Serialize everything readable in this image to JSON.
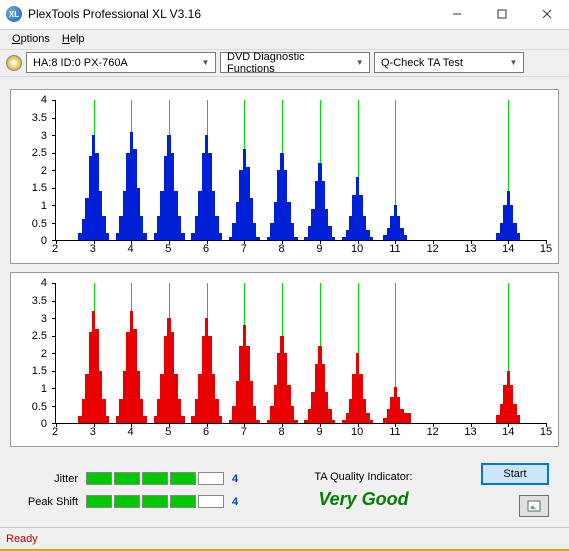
{
  "window": {
    "title": "PlexTools Professional XL V3.16",
    "icon_label": "XL"
  },
  "menu": {
    "options": "Options",
    "help": "Help"
  },
  "toolbar": {
    "drive": "HA:8 ID:0   PX-760A",
    "category": "DVD Diagnostic Functions",
    "test": "Q-Check TA Test"
  },
  "chart_common": {
    "x_min": 2,
    "x_max": 15,
    "x_step": 1,
    "y_min": 0,
    "y_max": 4,
    "y_step": 0.5,
    "grid_positions": [
      3,
      4,
      5,
      6,
      7,
      8,
      9,
      10,
      11,
      14
    ],
    "grid_color": "#00dd00",
    "plot_bg": "#ffffff",
    "border_color": "#999999",
    "bars_per_cluster": 9,
    "cluster_half_width": 0.41
  },
  "chart1": {
    "color": "#0020d8",
    "clusters": [
      {
        "c": 3,
        "h": [
          0.2,
          0.6,
          1.2,
          2.4,
          3.0,
          2.5,
          1.4,
          0.7,
          0.2
        ]
      },
      {
        "c": 4,
        "h": [
          0.2,
          0.7,
          1.4,
          2.5,
          3.1,
          2.6,
          1.5,
          0.7,
          0.2
        ]
      },
      {
        "c": 5,
        "h": [
          0.2,
          0.7,
          1.4,
          2.4,
          3.0,
          2.5,
          1.4,
          0.7,
          0.2
        ]
      },
      {
        "c": 6,
        "h": [
          0.2,
          0.7,
          1.4,
          2.5,
          3.0,
          2.5,
          1.4,
          0.7,
          0.2
        ]
      },
      {
        "c": 7,
        "h": [
          0.1,
          0.5,
          1.1,
          2.0,
          2.6,
          2.1,
          1.2,
          0.5,
          0.1
        ]
      },
      {
        "c": 8,
        "h": [
          0.1,
          0.5,
          1.1,
          2.0,
          2.5,
          2.0,
          1.1,
          0.5,
          0.1
        ]
      },
      {
        "c": 9,
        "h": [
          0.1,
          0.4,
          0.9,
          1.7,
          2.2,
          1.7,
          0.9,
          0.4,
          0.1
        ]
      },
      {
        "c": 10,
        "h": [
          0.1,
          0.3,
          0.7,
          1.3,
          1.8,
          1.3,
          0.7,
          0.3,
          0.1
        ]
      },
      {
        "c": 11,
        "h": [
          0.0,
          0.15,
          0.35,
          0.7,
          1.0,
          0.7,
          0.35,
          0.15,
          0.0
        ]
      },
      {
        "c": 14,
        "h": [
          0.0,
          0.2,
          0.5,
          1.0,
          1.4,
          1.0,
          0.5,
          0.2,
          0.0
        ]
      }
    ]
  },
  "chart2": {
    "color": "#e80000",
    "clusters": [
      {
        "c": 3,
        "h": [
          0.2,
          0.7,
          1.4,
          2.6,
          3.2,
          2.7,
          1.5,
          0.7,
          0.2
        ]
      },
      {
        "c": 4,
        "h": [
          0.2,
          0.7,
          1.5,
          2.6,
          3.2,
          2.7,
          1.5,
          0.7,
          0.2
        ]
      },
      {
        "c": 5,
        "h": [
          0.2,
          0.7,
          1.4,
          2.5,
          3.0,
          2.6,
          1.4,
          0.7,
          0.2
        ]
      },
      {
        "c": 6,
        "h": [
          0.2,
          0.7,
          1.4,
          2.5,
          3.0,
          2.5,
          1.4,
          0.7,
          0.2
        ]
      },
      {
        "c": 7,
        "h": [
          0.1,
          0.5,
          1.2,
          2.2,
          2.8,
          2.2,
          1.2,
          0.5,
          0.1
        ]
      },
      {
        "c": 8,
        "h": [
          0.1,
          0.5,
          1.1,
          2.0,
          2.5,
          2.0,
          1.1,
          0.5,
          0.1
        ]
      },
      {
        "c": 9,
        "h": [
          0.1,
          0.4,
          0.9,
          1.7,
          2.2,
          1.7,
          0.9,
          0.4,
          0.1
        ]
      },
      {
        "c": 10,
        "h": [
          0.1,
          0.3,
          0.7,
          1.4,
          2.0,
          1.4,
          0.7,
          0.3,
          0.1
        ]
      },
      {
        "c": 11,
        "h": [
          0.0,
          0.15,
          0.4,
          0.75,
          1.05,
          0.75,
          0.4,
          0.3,
          0.3
        ]
      },
      {
        "c": 14,
        "h": [
          0.0,
          0.25,
          0.55,
          1.1,
          1.5,
          1.1,
          0.55,
          0.25,
          0.0
        ]
      }
    ]
  },
  "results": {
    "jitter": {
      "label": "Jitter",
      "segments": [
        true,
        true,
        true,
        true,
        false
      ],
      "value": "4"
    },
    "peakshift": {
      "label": "Peak Shift",
      "segments": [
        true,
        true,
        true,
        true,
        false
      ],
      "value": "4"
    },
    "ta_label": "TA Quality Indicator:",
    "ta_value": "Very Good",
    "start_btn": "Start"
  },
  "status": {
    "text": "Ready"
  }
}
